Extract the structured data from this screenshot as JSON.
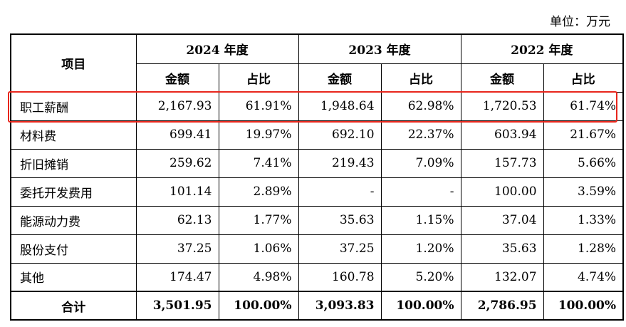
{
  "unit_note": "单位：万元",
  "header": {
    "item_label": "项目",
    "years": [
      "2024 年度",
      "2023 年度",
      "2022 年度"
    ],
    "amount_label": "金额",
    "ratio_label": "占比"
  },
  "rows": [
    {
      "item": "职工薪酬",
      "v2024": "2,167.93",
      "p2024": "61.91%",
      "v2023": "1,948.64",
      "p2023": "62.98%",
      "v2022": "1,720.53",
      "p2022": "61.74%"
    },
    {
      "item": "材料费",
      "v2024": "699.41",
      "p2024": "19.97%",
      "v2023": "692.10",
      "p2023": "22.37%",
      "v2022": "603.94",
      "p2022": "21.67%"
    },
    {
      "item": "折旧摊销",
      "v2024": "259.62",
      "p2024": "7.41%",
      "v2023": "219.43",
      "p2023": "7.09%",
      "v2022": "157.73",
      "p2022": "5.66%"
    },
    {
      "item": "委托开发费用",
      "v2024": "101.14",
      "p2024": "2.89%",
      "v2023": "-",
      "p2023": "-",
      "v2022": "100.00",
      "p2022": "3.59%"
    },
    {
      "item": "能源动力费",
      "v2024": "62.13",
      "p2024": "1.77%",
      "v2023": "35.63",
      "p2023": "1.15%",
      "v2022": "37.04",
      "p2022": "1.33%"
    },
    {
      "item": "股份支付",
      "v2024": "37.25",
      "p2024": "1.06%",
      "v2023": "37.25",
      "p2023": "1.20%",
      "v2022": "35.63",
      "p2022": "1.28%"
    },
    {
      "item": "其他",
      "v2024": "174.47",
      "p2024": "4.98%",
      "v2023": "160.78",
      "p2023": "5.20%",
      "v2022": "132.07",
      "p2022": "4.74%"
    }
  ],
  "total": {
    "item": "合计",
    "v2024": "3,501.95",
    "p2024": "100.00%",
    "v2023": "3,093.83",
    "p2023": "100.00%",
    "v2022": "2,786.95",
    "p2022": "100.00%"
  },
  "highlight_color": "#e8261c"
}
